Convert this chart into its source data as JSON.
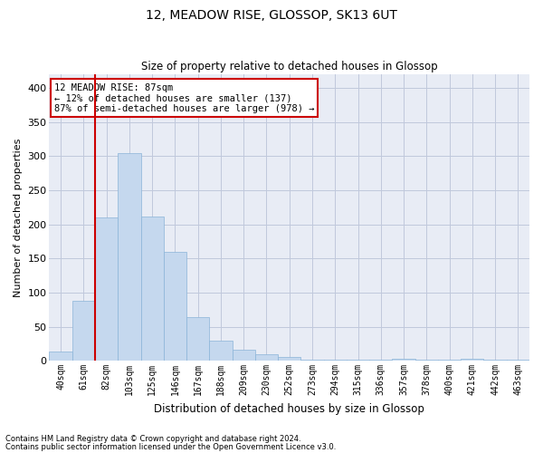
{
  "title1": "12, MEADOW RISE, GLOSSOP, SK13 6UT",
  "title2": "Size of property relative to detached houses in Glossop",
  "xlabel": "Distribution of detached houses by size in Glossop",
  "ylabel": "Number of detached properties",
  "categories": [
    "40sqm",
    "61sqm",
    "82sqm",
    "103sqm",
    "125sqm",
    "146sqm",
    "167sqm",
    "188sqm",
    "209sqm",
    "230sqm",
    "252sqm",
    "273sqm",
    "294sqm",
    "315sqm",
    "336sqm",
    "357sqm",
    "378sqm",
    "400sqm",
    "421sqm",
    "442sqm",
    "463sqm"
  ],
  "values": [
    14,
    88,
    210,
    304,
    212,
    160,
    64,
    30,
    16,
    9,
    6,
    2,
    2,
    2,
    2,
    3,
    2,
    2,
    3,
    2,
    2
  ],
  "bar_color": "#c5d8ee",
  "bar_edge_color": "#8ab4d8",
  "grid_color": "#c0c8dc",
  "background_color": "#e8ecf5",
  "vline_x_idx": 2,
  "vline_color": "#cc0000",
  "annotation_line1": "12 MEADOW RISE: 87sqm",
  "annotation_line2": "← 12% of detached houses are smaller (137)",
  "annotation_line3": "87% of semi-detached houses are larger (978) →",
  "annotation_box_color": "white",
  "annotation_edge_color": "#cc0000",
  "ylim": [
    0,
    420
  ],
  "yticks": [
    0,
    50,
    100,
    150,
    200,
    250,
    300,
    350,
    400
  ],
  "footnote1": "Contains HM Land Registry data © Crown copyright and database right 2024.",
  "footnote2": "Contains public sector information licensed under the Open Government Licence v3.0."
}
